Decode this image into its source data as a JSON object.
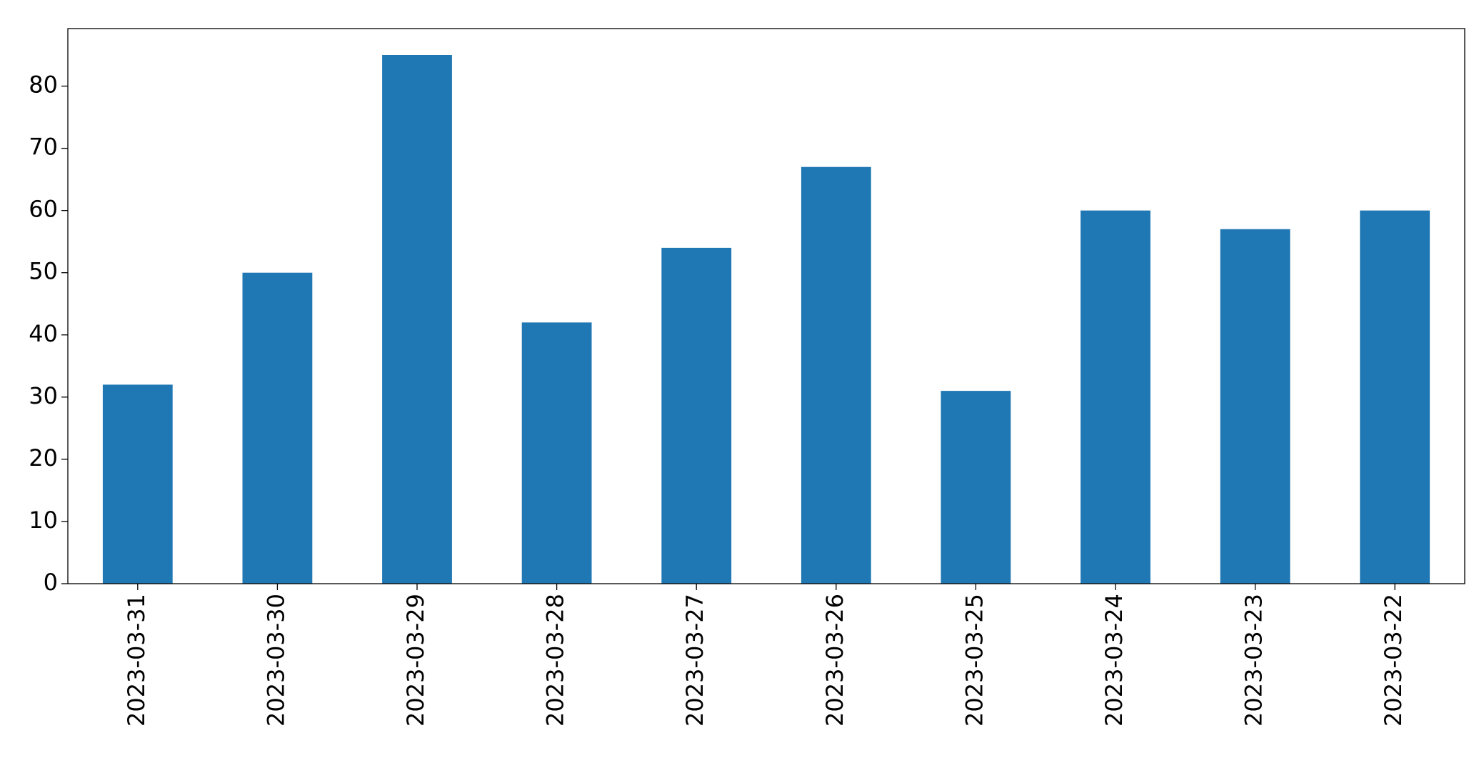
{
  "chart_data": {
    "type": "bar",
    "categories": [
      "2023-03-31",
      "2023-03-30",
      "2023-03-29",
      "2023-03-28",
      "2023-03-27",
      "2023-03-26",
      "2023-03-25",
      "2023-03-24",
      "2023-03-23",
      "2023-03-22"
    ],
    "values": [
      32,
      50,
      85,
      42,
      54,
      67,
      31,
      60,
      57,
      60
    ],
    "color": "#1f77b4",
    "ylim": [
      0,
      89.25
    ],
    "yticks": [
      0,
      10,
      20,
      30,
      40,
      50,
      60,
      70,
      80
    ],
    "grid": false
  }
}
